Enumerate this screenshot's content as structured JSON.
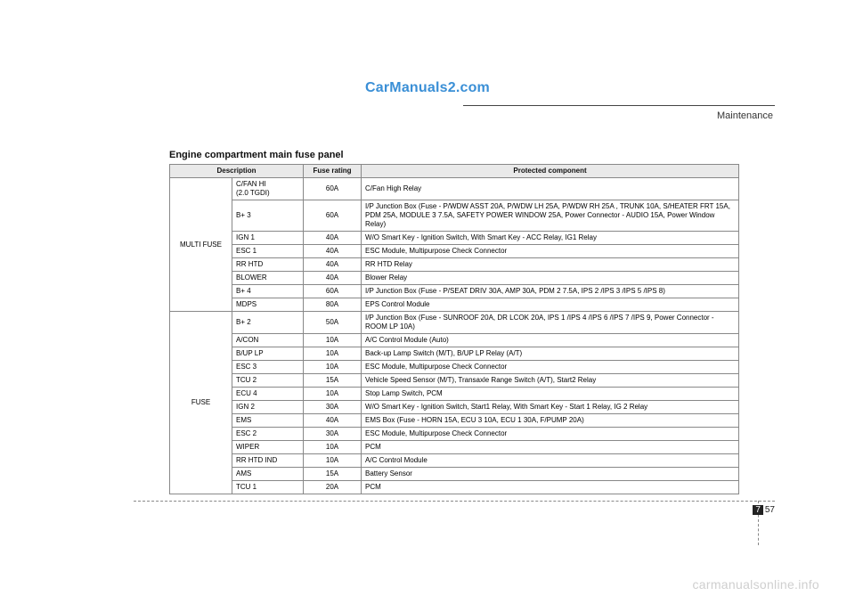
{
  "watermark_top": "CarManuals2.com",
  "watermark_bottom": "carmanualsonline.info",
  "section_label": "Maintenance",
  "title": "Engine compartment main fuse panel",
  "page_number_prefix": "7",
  "page_number": "57",
  "table": {
    "headers": [
      "Description",
      "Fuse rating",
      "Protected component"
    ],
    "groups": [
      {
        "category": "MULTI FUSE",
        "rows": [
          {
            "desc": "C/FAN HI\n(2.0 TGDI)",
            "rating": "60A",
            "prot": "C/Fan High Relay"
          },
          {
            "desc": "B+ 3",
            "rating": "60A",
            "prot": "I/P Junction Box (Fuse - P/WDW ASST 20A, P/WDW LH 25A, P/WDW RH 25A , TRUNK 10A, S/HEATER FRT 15A, PDM 25A, MODULE 3 7.5A, SAFETY POWER WINDOW 25A, Power Connector - AUDIO 15A, Power Window Relay)"
          },
          {
            "desc": "IGN 1",
            "rating": "40A",
            "prot": "W/O Smart Key - Ignition Switch, With Smart Key - ACC Relay, IG1 Relay"
          },
          {
            "desc": "ESC 1",
            "rating": "40A",
            "prot": "ESC Module, Multipurpose Check Connector"
          },
          {
            "desc": "RR HTD",
            "rating": "40A",
            "prot": "RR HTD Relay"
          },
          {
            "desc": "BLOWER",
            "rating": "40A",
            "prot": "Blower Relay"
          },
          {
            "desc": "B+ 4",
            "rating": "60A",
            "prot": "I/P Junction Box (Fuse - P/SEAT DRIV 30A, AMP 30A, PDM 2 7.5A, IPS 2 /IPS 3 /IPS 5 /IPS 8)"
          },
          {
            "desc": "MDPS",
            "rating": "80A",
            "prot": "EPS Control Module"
          }
        ]
      },
      {
        "category": "FUSE",
        "rows": [
          {
            "desc": "B+ 2",
            "rating": "50A",
            "prot": "I/P Junction Box (Fuse - SUNROOF 20A, DR LCOK 20A, IPS 1 /IPS 4 /IPS 6 /IPS 7 /IPS 9, Power Connector - ROOM LP 10A)"
          },
          {
            "desc": "A/CON",
            "rating": "10A",
            "prot": "A/C Control Module (Auto)"
          },
          {
            "desc": "B/UP LP",
            "rating": "10A",
            "prot": "Back-up Lamp Switch (M/T), B/UP LP Relay (A/T)"
          },
          {
            "desc": "ESC 3",
            "rating": "10A",
            "prot": "ESC Module, Multipurpose Check Connector"
          },
          {
            "desc": "TCU 2",
            "rating": "15A",
            "prot": "Vehicle Speed Sensor (M/T), Transaxle Range Switch (A/T), Start2 Relay"
          },
          {
            "desc": "ECU 4",
            "rating": "10A",
            "prot": "Stop Lamp Switch, PCM"
          },
          {
            "desc": "IGN 2",
            "rating": "30A",
            "prot": "W/O Smart Key - Ignition Switch, Start1 Relay, With Smart Key - Start 1 Relay, IG 2 Relay"
          },
          {
            "desc": "EMS",
            "rating": "40A",
            "prot": "EMS Box (Fuse - HORN 15A, ECU 3 10A, ECU 1 30A, F/PUMP 20A)"
          },
          {
            "desc": "ESC 2",
            "rating": "30A",
            "prot": "ESC Module, Multipurpose Check Connector"
          },
          {
            "desc": "WIPER",
            "rating": "10A",
            "prot": "PCM"
          },
          {
            "desc": "RR HTD IND",
            "rating": "10A",
            "prot": "A/C Control Module"
          },
          {
            "desc": "AMS",
            "rating": "15A",
            "prot": "Battery Sensor"
          },
          {
            "desc": "TCU 1",
            "rating": "20A",
            "prot": "PCM"
          }
        ]
      }
    ]
  }
}
